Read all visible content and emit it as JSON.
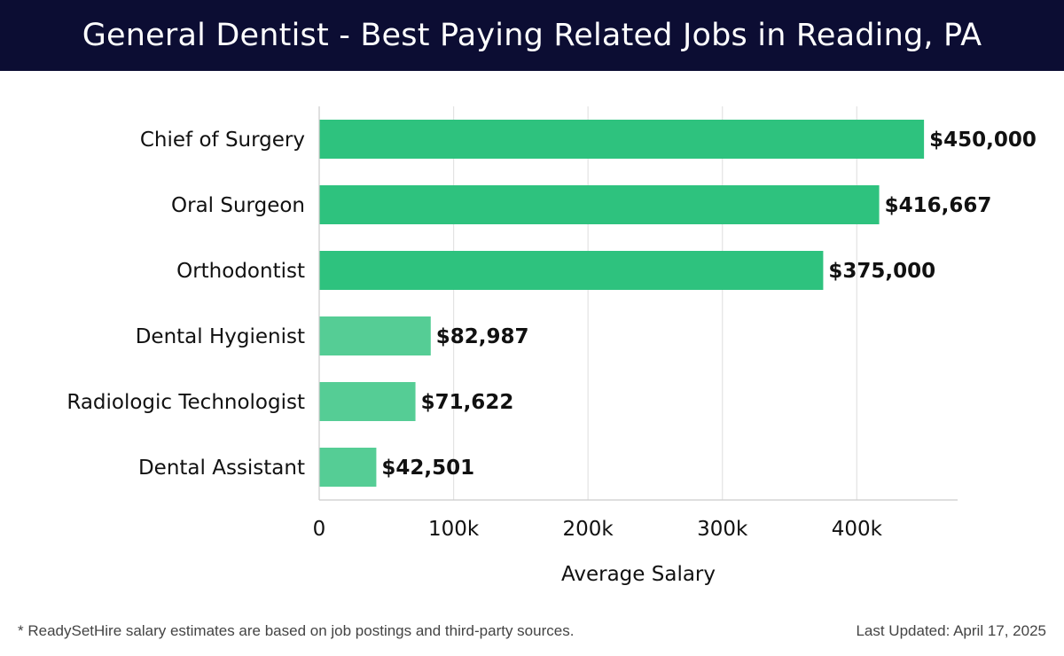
{
  "header": {
    "title": "General Dentist - Best Paying Related Jobs in Reading, PA"
  },
  "chart_data": {
    "type": "bar",
    "orientation": "horizontal",
    "categories": [
      "Chief of Surgery",
      "Oral Surgeon",
      "Orthodontist",
      "Dental Hygienist",
      "Radiologic Technologist",
      "Dental Assistant"
    ],
    "values": [
      450000,
      416667,
      375000,
      82987,
      71622,
      42501
    ],
    "value_labels": [
      "$450,000",
      "$416,667",
      "$375,000",
      "$82,987",
      "$71,622",
      "$42,501"
    ],
    "bar_colors": [
      "#2ec27e",
      "#2ec27e",
      "#2ec27e",
      "#55cd95",
      "#55cd95",
      "#55cd95"
    ],
    "xlabel": "Average Salary",
    "xlim": [
      0,
      475000
    ],
    "xticks": [
      0,
      100000,
      200000,
      300000,
      400000
    ],
    "xtick_labels": [
      "0",
      "100k",
      "200k",
      "300k",
      "400k"
    ],
    "grid": true
  },
  "footer": {
    "note": "* ReadySetHire salary estimates are based on job postings and third-party sources.",
    "updated": "Last Updated: April 17, 2025"
  }
}
